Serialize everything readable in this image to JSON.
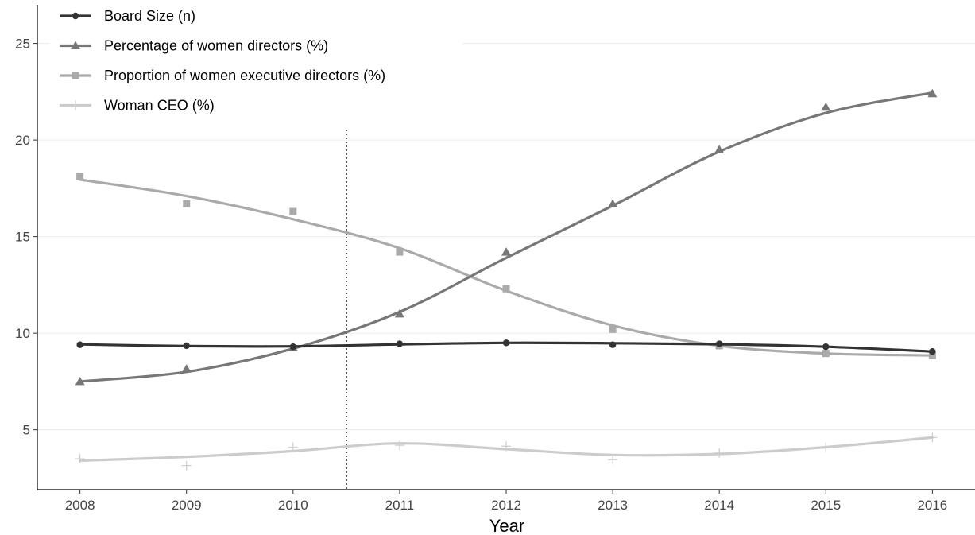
{
  "chart_data": {
    "type": "line",
    "title": "",
    "xlabel": "Year",
    "ylabel": "",
    "x": [
      2008,
      2009,
      2010,
      2011,
      2012,
      2013,
      2014,
      2015,
      2016
    ],
    "xlim": [
      2007.6,
      2016.4
    ],
    "ylim": [
      1.9,
      27
    ],
    "yticks": [
      5,
      10,
      15,
      20,
      25
    ],
    "grid": "horizontal",
    "legend": "top-left",
    "reference_line": {
      "x": 2010.5,
      "style": "dotted"
    },
    "series": [
      {
        "name": "Board Size (n)",
        "marker": "circle",
        "color": "#333333",
        "points": [
          9.4,
          9.35,
          9.3,
          9.45,
          9.5,
          9.4,
          9.45,
          9.3,
          9.05
        ],
        "smooth": [
          9.42,
          9.33,
          9.32,
          9.42,
          9.5,
          9.48,
          9.43,
          9.3,
          9.05
        ]
      },
      {
        "name": "Percentage of women directors (%)",
        "marker": "triangle",
        "color": "#777777",
        "points": [
          7.5,
          8.15,
          9.25,
          11.0,
          14.2,
          16.7,
          19.5,
          21.7,
          22.4
        ],
        "smooth": [
          7.5,
          8.0,
          9.2,
          11.1,
          13.9,
          16.6,
          19.4,
          21.4,
          22.45
        ]
      },
      {
        "name": "Proportion of women executive directors (%)",
        "marker": "square",
        "color": "#aaaaaa",
        "points": [
          18.1,
          16.7,
          16.3,
          14.2,
          12.3,
          10.2,
          9.35,
          8.95,
          8.85
        ],
        "smooth": [
          17.95,
          17.1,
          15.9,
          14.4,
          12.2,
          10.4,
          9.35,
          8.95,
          8.85
        ]
      },
      {
        "name": "Woman CEO (%)",
        "marker": "plus",
        "color": "#cccccc",
        "points": [
          3.5,
          3.15,
          4.1,
          4.2,
          4.15,
          3.45,
          3.8,
          4.1,
          4.6
        ],
        "smooth": [
          3.4,
          3.6,
          3.9,
          4.3,
          4.0,
          3.7,
          3.75,
          4.1,
          4.6
        ]
      }
    ]
  }
}
